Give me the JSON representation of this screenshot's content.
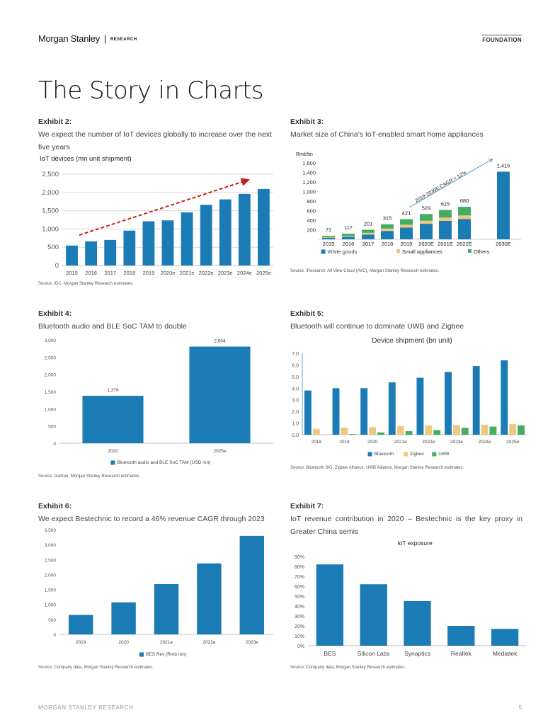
{
  "header": {
    "brand": "Morgan Stanley",
    "separator": "|",
    "section": "RESEARCH",
    "tag": "FOUNDATION"
  },
  "page_title": "The Story in Charts",
  "footer": {
    "left": "MORGAN STANLEY RESEARCH",
    "page_number": "5"
  },
  "colors": {
    "blue": "#1a7bb5",
    "tan": "#ecc97e",
    "green": "#44ad62",
    "red_arrow": "#c81e1e"
  },
  "exhibits": {
    "ex2": {
      "label": "Exhibit 2:",
      "subtitle": "We expect the number of IoT devices globally to increase over the next five years",
      "source": "Source: IDC, Morgan Stanley Research estimates."
    },
    "ex3": {
      "label": "Exhibit 3:",
      "subtitle": "Market size of China's IoT-enabled smart home appliances",
      "source": "Source: iResearch, All View Cloud (AVC), Morgan Stanley Research estimates."
    },
    "ex4": {
      "label": "Exhibit 4:",
      "subtitle": "Bluetooth audio and BLE SoC TAM to double",
      "source": "Source: Gartner, Morgan Stanley Research estimates."
    },
    "ex5": {
      "label": "Exhibit 5:",
      "subtitle": "Bluetooth will continue to dominate UWB and Zigbee",
      "source": "Source: Bluetooth SIG, Zigbee Alliance, UWB Alliance, Morgan Stanley Research estimates."
    },
    "ex6": {
      "label": "Exhibit 6:",
      "subtitle": "We expect Bestechnic to record a 46% revenue CAGR through 2023",
      "source": "Source: Company data, Morgan Stanley Research estimates."
    },
    "ex7": {
      "label": "Exhibit 7:",
      "subtitle": "IoT revenue contribution in 2020 – Bestechnic is the key proxy in Greater China semis",
      "source": "Source: Company data, Morgan Stanley Research estimates."
    }
  },
  "chart_data": [
    {
      "id": "ex2",
      "type": "bar",
      "title": "IoT devices (mn unit shipment)",
      "categories": [
        "2015",
        "2016",
        "2017",
        "2018",
        "2019",
        "2020e",
        "2021e",
        "2022e",
        "2023e",
        "2024e",
        "2025e"
      ],
      "values": [
        545,
        660,
        700,
        955,
        1210,
        1235,
        1455,
        1660,
        1810,
        1960,
        2095
      ],
      "ylim": [
        0,
        2500
      ],
      "yticks": [
        0,
        500,
        1000,
        1500,
        2000,
        2500
      ],
      "ytick_labels": [
        "0",
        "500",
        "1,000",
        "1,500",
        "2,000",
        "2,500"
      ],
      "grid": true,
      "annotation": "trend-arrow (red dashed)"
    },
    {
      "id": "ex3",
      "type": "bar",
      "stacked": true,
      "ylabel": "Rmb'bn",
      "categories": [
        "2015",
        "2016",
        "2017",
        "2018",
        "2019",
        "2020E",
        "2021E",
        "2022E",
        "2030E"
      ],
      "series": [
        {
          "name": "White goods",
          "values": [
            30,
            55,
            100,
            175,
            245,
            325,
            385,
            425,
            1415
          ]
        },
        {
          "name": "Small appliances",
          "values": [
            12,
            17,
            36,
            50,
            60,
            64,
            70,
            75,
            0
          ]
        },
        {
          "name": "Others",
          "values": [
            29,
            45,
            65,
            90,
            116,
            140,
            160,
            180,
            0
          ]
        }
      ],
      "totals": [
        71,
        117,
        201,
        315,
        421,
        529,
        615,
        680,
        1415
      ],
      "total_labels": [
        "71",
        "117",
        "201",
        "315",
        "421",
        "529",
        "615",
        "680",
        "1,415"
      ],
      "ylim": [
        0,
        1600
      ],
      "yticks": [
        0,
        200,
        400,
        600,
        800,
        1000,
        1200,
        1400,
        1600
      ],
      "ytick_labels": [
        "",
        "200",
        "400",
        "600",
        "800",
        "1,000",
        "1,200",
        "1,400",
        "1,600"
      ],
      "annotation": "2019-2030E CAGR = 12%",
      "legend": "bottom"
    },
    {
      "id": "ex4",
      "type": "bar",
      "categories": [
        "2020",
        "2025e"
      ],
      "series": [
        {
          "name": "Bluetooth audio and BLE SoC TAM (USD mn)",
          "values": [
            1376,
            2804
          ]
        }
      ],
      "value_labels": [
        "1,376",
        "2,804"
      ],
      "ylim": [
        0,
        3000
      ],
      "yticks": [
        0,
        500,
        1000,
        1500,
        2000,
        2500,
        3000
      ],
      "ytick_labels": [
        "0",
        "500",
        "1,000",
        "1,500",
        "2,000",
        "2,500",
        "3,000"
      ],
      "legend": "bottom"
    },
    {
      "id": "ex5",
      "type": "bar",
      "title": "Device shipment (bn unit)",
      "categories": [
        "2018",
        "2019",
        "2020",
        "2021e",
        "2022e",
        "2023e",
        "2024e",
        "2025e"
      ],
      "series": [
        {
          "name": "Bluetooth",
          "values": [
            3.8,
            4.0,
            4.0,
            4.5,
            4.9,
            5.4,
            5.9,
            6.4
          ]
        },
        {
          "name": "Zigbee",
          "values": [
            0.5,
            0.6,
            0.65,
            0.75,
            0.8,
            0.82,
            0.85,
            0.9
          ]
        },
        {
          "name": "UWB",
          "values": [
            0.0,
            0.05,
            0.2,
            0.3,
            0.4,
            0.6,
            0.7,
            0.8
          ]
        }
      ],
      "ylim": [
        0,
        7
      ],
      "yticks": [
        0,
        1,
        2,
        3,
        4,
        5,
        6,
        7
      ],
      "ytick_labels": [
        "0.0",
        "1.0",
        "2.0",
        "3.0",
        "4.0",
        "5.0",
        "6.0",
        "7.0"
      ],
      "legend": "bottom"
    },
    {
      "id": "ex6",
      "type": "bar",
      "categories": [
        "2019",
        "2020",
        "2021e",
        "2022e",
        "2023e"
      ],
      "series": [
        {
          "name": "BES Rev (Rmb mn)",
          "values": [
            650,
            1070,
            1680,
            2370,
            3290
          ]
        }
      ],
      "ylim": [
        0,
        3500
      ],
      "yticks": [
        0,
        500,
        1000,
        1500,
        2000,
        2500,
        3000,
        3500
      ],
      "ytick_labels": [
        "0",
        "500",
        "1,000",
        "1,500",
        "2,000",
        "2,500",
        "3,000",
        "3,500"
      ],
      "legend": "bottom"
    },
    {
      "id": "ex7",
      "type": "bar",
      "title": "IoT exposure",
      "categories": [
        "BES",
        "Silicon Labs",
        "Synaptics",
        "Realtek",
        "Mediatek"
      ],
      "values": [
        82,
        62,
        45,
        20,
        17
      ],
      "unit": "%",
      "ylim": [
        0,
        90
      ],
      "yticks": [
        0,
        10,
        20,
        30,
        40,
        50,
        60,
        70,
        80,
        90
      ],
      "ytick_labels": [
        "0%",
        "10%",
        "20%",
        "30%",
        "40%",
        "50%",
        "60%",
        "70%",
        "80%",
        "90%"
      ]
    }
  ]
}
